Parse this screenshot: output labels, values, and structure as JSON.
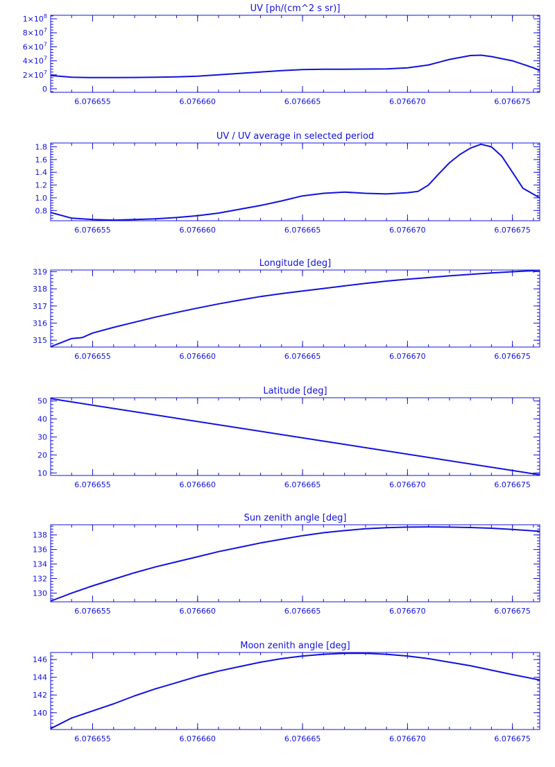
{
  "colors": {
    "ink": "#1010e0",
    "background": "#ffffff"
  },
  "chart_data": [
    {
      "type": "line",
      "title": "UV [ph/(cm^2 s sr)]",
      "xlim": [
        6.076653,
        6.0766763
      ],
      "xticks": [
        6.076655,
        6.07666,
        6.076665,
        6.07667,
        6.076675
      ],
      "xtick_labels": [
        "6.076655",
        "6.076660",
        "6.076665",
        "6.076670",
        "6.076675"
      ],
      "ylim": [
        -5000000,
        105000000
      ],
      "yticks": [
        0,
        20000000,
        40000000,
        60000000,
        80000000,
        100000000
      ],
      "ytick_labels": [
        {
          "base": "0",
          "exp": ""
        },
        {
          "base": "2×10",
          "exp": "7"
        },
        {
          "base": "4×10",
          "exp": "7"
        },
        {
          "base": "6×10",
          "exp": "7"
        },
        {
          "base": "8×10",
          "exp": "7"
        },
        {
          "base": "1×10",
          "exp": "8"
        }
      ],
      "x": [
        6.076653,
        6.076654,
        6.076655,
        6.076656,
        6.076657,
        6.076658,
        6.076659,
        6.07666,
        6.076661,
        6.076662,
        6.076663,
        6.076664,
        6.076665,
        6.076666,
        6.076667,
        6.076668,
        6.076669,
        6.07667,
        6.076671,
        6.076672,
        6.076673,
        6.0766735,
        6.076674,
        6.076675,
        6.076676,
        6.0766763
      ],
      "y": [
        19000000,
        16500000,
        16000000,
        16000000,
        16200000,
        16500000,
        17000000,
        18000000,
        20000000,
        22000000,
        24000000,
        26000000,
        27500000,
        28000000,
        28000000,
        28200000,
        28500000,
        30000000,
        34000000,
        42000000,
        47500000,
        48000000,
        46000000,
        40000000,
        30000000,
        26000000
      ],
      "grid": false
    },
    {
      "type": "line",
      "title": "UV / UV average in selected period",
      "xlim": [
        6.076653,
        6.0766763
      ],
      "xticks": [
        6.076655,
        6.07666,
        6.076665,
        6.07667,
        6.076675
      ],
      "xtick_labels": [
        "6.076655",
        "6.076660",
        "6.076665",
        "6.076670",
        "6.076675"
      ],
      "ylim": [
        0.64,
        1.86
      ],
      "yticks": [
        0.8,
        1.0,
        1.2,
        1.4,
        1.6,
        1.8
      ],
      "ytick_labels": [
        {
          "base": "0.8",
          "exp": ""
        },
        {
          "base": "1.0",
          "exp": ""
        },
        {
          "base": "1.2",
          "exp": ""
        },
        {
          "base": "1.4",
          "exp": ""
        },
        {
          "base": "1.6",
          "exp": ""
        },
        {
          "base": "1.8",
          "exp": ""
        }
      ],
      "x": [
        6.076653,
        6.076654,
        6.076655,
        6.076656,
        6.076657,
        6.076658,
        6.076659,
        6.07666,
        6.076661,
        6.076662,
        6.076663,
        6.076664,
        6.076665,
        6.076666,
        6.076667,
        6.076668,
        6.076669,
        6.07667,
        6.0766705,
        6.076671,
        6.0766715,
        6.076672,
        6.0766725,
        6.076673,
        6.0766735,
        6.076674,
        6.0766745,
        6.076675,
        6.0766755,
        6.0766763
      ],
      "y": [
        0.77,
        0.68,
        0.66,
        0.65,
        0.66,
        0.67,
        0.69,
        0.72,
        0.76,
        0.82,
        0.88,
        0.95,
        1.03,
        1.07,
        1.09,
        1.07,
        1.06,
        1.08,
        1.1,
        1.2,
        1.38,
        1.55,
        1.68,
        1.78,
        1.84,
        1.8,
        1.65,
        1.4,
        1.15,
        1.0
      ],
      "grid": false
    },
    {
      "type": "line",
      "title": "Longitude [deg]",
      "xlim": [
        6.076653,
        6.0766763
      ],
      "xticks": [
        6.076655,
        6.07666,
        6.076665,
        6.07667,
        6.076675
      ],
      "xtick_labels": [
        "6.076655",
        "6.076660",
        "6.076665",
        "6.076670",
        "6.076675"
      ],
      "ylim": [
        314.6,
        319.1
      ],
      "yticks": [
        315,
        316,
        317,
        318,
        319
      ],
      "ytick_labels": [
        {
          "base": "315",
          "exp": ""
        },
        {
          "base": "316",
          "exp": ""
        },
        {
          "base": "317",
          "exp": ""
        },
        {
          "base": "318",
          "exp": ""
        },
        {
          "base": "319",
          "exp": ""
        }
      ],
      "x": [
        6.076653,
        6.076654,
        6.0766545,
        6.076655,
        6.076656,
        6.076657,
        6.076658,
        6.076659,
        6.07666,
        6.076661,
        6.076662,
        6.076663,
        6.076664,
        6.076665,
        6.076666,
        6.076667,
        6.076668,
        6.076669,
        6.07667,
        6.076671,
        6.076672,
        6.076673,
        6.076674,
        6.076675,
        6.0766763
      ],
      "y": [
        314.62,
        315.1,
        315.15,
        315.42,
        315.75,
        316.05,
        316.35,
        316.62,
        316.88,
        317.12,
        317.34,
        317.55,
        317.72,
        317.87,
        318.02,
        318.17,
        318.32,
        318.45,
        318.56,
        318.66,
        318.76,
        318.85,
        318.93,
        319.0,
        319.08
      ],
      "grid": false
    },
    {
      "type": "line",
      "title": "Latitude [deg]",
      "xlim": [
        6.076653,
        6.0766763
      ],
      "xticks": [
        6.076655,
        6.07666,
        6.076665,
        6.07667,
        6.076675
      ],
      "xtick_labels": [
        "6.076655",
        "6.076660",
        "6.076665",
        "6.076670",
        "6.076675"
      ],
      "ylim": [
        8.6,
        51.8
      ],
      "yticks": [
        10,
        20,
        30,
        40,
        50
      ],
      "ytick_labels": [
        {
          "base": "10",
          "exp": ""
        },
        {
          "base": "20",
          "exp": ""
        },
        {
          "base": "30",
          "exp": ""
        },
        {
          "base": "40",
          "exp": ""
        },
        {
          "base": "50",
          "exp": ""
        }
      ],
      "x": [
        6.076653,
        6.0766763
      ],
      "y": [
        51.3,
        9.0
      ],
      "grid": false
    },
    {
      "type": "line",
      "title": "Sun zenith angle [deg]",
      "xlim": [
        6.076653,
        6.0766763
      ],
      "xticks": [
        6.076655,
        6.07666,
        6.076665,
        6.07667,
        6.076675
      ],
      "xtick_labels": [
        "6.076655",
        "6.076660",
        "6.076665",
        "6.076670",
        "6.076675"
      ],
      "ylim": [
        128.8,
        139.4
      ],
      "yticks": [
        130,
        132,
        134,
        136,
        138
      ],
      "ytick_labels": [
        {
          "base": "130",
          "exp": ""
        },
        {
          "base": "132",
          "exp": ""
        },
        {
          "base": "134",
          "exp": ""
        },
        {
          "base": "136",
          "exp": ""
        },
        {
          "base": "138",
          "exp": ""
        }
      ],
      "x": [
        6.076653,
        6.076654,
        6.076655,
        6.076656,
        6.076657,
        6.076658,
        6.076659,
        6.07666,
        6.076661,
        6.076662,
        6.076663,
        6.076664,
        6.076665,
        6.076666,
        6.076667,
        6.076668,
        6.076669,
        6.07667,
        6.076671,
        6.076672,
        6.076673,
        6.076674,
        6.076675,
        6.0766763
      ],
      "y": [
        128.9,
        130.0,
        131.0,
        131.9,
        132.8,
        133.6,
        134.3,
        135.0,
        135.7,
        136.3,
        136.9,
        137.4,
        137.9,
        138.3,
        138.6,
        138.85,
        139.0,
        139.08,
        139.1,
        139.08,
        139.02,
        138.92,
        138.75,
        138.5
      ],
      "grid": false
    },
    {
      "type": "line",
      "title": "Moon zenith angle [deg]",
      "xlim": [
        6.076653,
        6.0766763
      ],
      "xticks": [
        6.076655,
        6.07666,
        6.076665,
        6.07667,
        6.076675
      ],
      "xtick_labels": [
        "6.076655",
        "6.076660",
        "6.076665",
        "6.076670",
        "6.076675"
      ],
      "ylim": [
        138.1,
        146.8
      ],
      "yticks": [
        140,
        142,
        144,
        146
      ],
      "ytick_labels": [
        {
          "base": "140",
          "exp": ""
        },
        {
          "base": "142",
          "exp": ""
        },
        {
          "base": "144",
          "exp": ""
        },
        {
          "base": "146",
          "exp": ""
        }
      ],
      "x": [
        6.076653,
        6.076654,
        6.076655,
        6.076656,
        6.076657,
        6.076658,
        6.076659,
        6.07666,
        6.076661,
        6.076662,
        6.076663,
        6.076664,
        6.076665,
        6.076666,
        6.076667,
        6.076668,
        6.076669,
        6.07667,
        6.076671,
        6.076672,
        6.076673,
        6.076674,
        6.076675,
        6.0766763
      ],
      "y": [
        138.2,
        139.4,
        140.2,
        141.0,
        141.9,
        142.7,
        143.4,
        144.1,
        144.7,
        145.2,
        145.7,
        146.1,
        146.4,
        146.6,
        146.7,
        146.7,
        146.6,
        146.4,
        146.1,
        145.7,
        145.3,
        144.8,
        144.3,
        143.7
      ],
      "grid": false
    }
  ]
}
